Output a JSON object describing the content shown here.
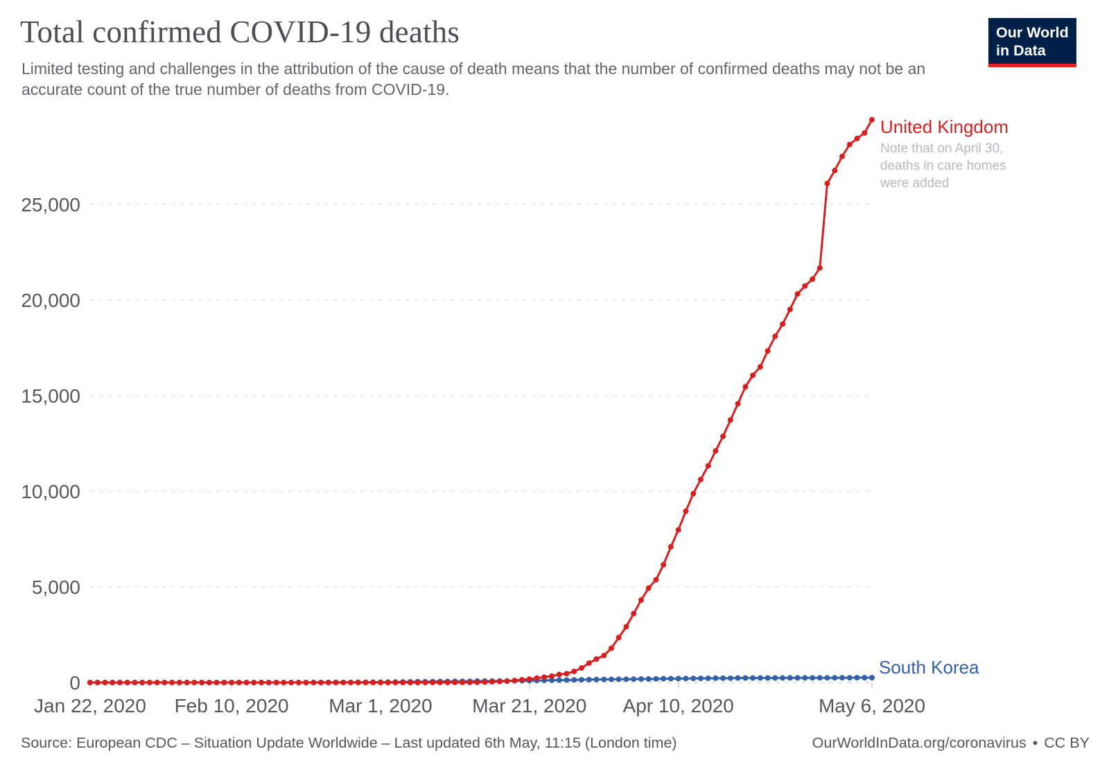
{
  "header": {
    "title": "Total confirmed COVID-19 deaths",
    "subtitle": "Limited testing and challenges in the attribution of the cause of death means that the number of confirmed deaths may not be an accurate count of the true number of deaths from COVID-19.",
    "logo": {
      "line1": "Our World",
      "line2": "in Data",
      "bg_color": "#002147",
      "accent_color": "#e2261c"
    }
  },
  "annotations": {
    "uk_label": "United Kingdom",
    "uk_note": "Note that on April 30, deaths in care homes were added",
    "sk_label": "South Korea"
  },
  "footer": {
    "source": "Source: European CDC – Situation Update Worldwide – Last updated 6th May, 11:15 (London time)",
    "link": "OurWorldInData.org/coronavirus",
    "bullet": "•",
    "license": "CC BY"
  },
  "chart_data": {
    "type": "line",
    "title": "Total confirmed COVID-19 deaths",
    "xlabel": "",
    "ylabel": "",
    "x_unit": "date",
    "x_start": "Jan 22, 2020",
    "x_end": "May 6, 2020",
    "n_points": 106,
    "ylim": [
      0,
      30500
    ],
    "grid": "dashed-horizontal",
    "legend_position": "right-of-line-labels",
    "y_ticks": [
      {
        "value": 0,
        "label": "0"
      },
      {
        "value": 5000,
        "label": "5,000"
      },
      {
        "value": 10000,
        "label": "10,000"
      },
      {
        "value": 15000,
        "label": "15,000"
      },
      {
        "value": 20000,
        "label": "20,000"
      },
      {
        "value": 25000,
        "label": "25,000"
      }
    ],
    "x_ticks": [
      {
        "day": 0,
        "label": "Jan 22, 2020"
      },
      {
        "day": 19,
        "label": "Feb 10, 2020"
      },
      {
        "day": 39,
        "label": "Mar 1, 2020"
      },
      {
        "day": 59,
        "label": "Mar 21, 2020"
      },
      {
        "day": 79,
        "label": "Apr 10, 2020"
      },
      {
        "day": 105,
        "label": "May 6, 2020"
      }
    ],
    "series": [
      {
        "name": "United Kingdom",
        "color": "#d62020",
        "values": [
          0,
          0,
          0,
          0,
          0,
          0,
          0,
          0,
          0,
          0,
          0,
          0,
          0,
          0,
          0,
          0,
          0,
          0,
          0,
          0,
          0,
          0,
          0,
          0,
          0,
          0,
          0,
          0,
          0,
          0,
          0,
          0,
          0,
          0,
          0,
          0,
          0,
          0,
          0,
          0,
          0,
          0,
          0,
          0,
          1,
          2,
          2,
          3,
          4,
          6,
          8,
          8,
          11,
          21,
          35,
          55,
          71,
          104,
          144,
          177,
          233,
          281,
          335,
          422,
          465,
          578,
          759,
          1019,
          1228,
          1408,
          1789,
          2352,
          2921,
          3605,
          4313,
          4934,
          5373,
          6159,
          7097,
          7978,
          8958,
          9875,
          10612,
          11329,
          12107,
          12868,
          13729,
          14576,
          15464,
          16060,
          16509,
          17337,
          18100,
          18738,
          19506,
          20319,
          20732,
          21092,
          21678,
          26097,
          26771,
          27510,
          28131,
          28446,
          28734,
          29427
        ]
      },
      {
        "name": "South Korea",
        "color": "#3360a9",
        "values": [
          0,
          0,
          0,
          0,
          0,
          0,
          0,
          0,
          0,
          0,
          0,
          0,
          0,
          0,
          0,
          0,
          0,
          0,
          0,
          0,
          0,
          0,
          0,
          0,
          0,
          0,
          0,
          0,
          0,
          1,
          2,
          2,
          6,
          8,
          10,
          12,
          13,
          13,
          17,
          18,
          22,
          28,
          32,
          35,
          42,
          44,
          50,
          53,
          54,
          60,
          66,
          67,
          72,
          75,
          75,
          81,
          84,
          91,
          94,
          102,
          104,
          111,
          120,
          126,
          131,
          139,
          144,
          152,
          158,
          162,
          165,
          169,
          174,
          177,
          183,
          186,
          192,
          200,
          204,
          208,
          211,
          214,
          217,
          222,
          225,
          229,
          230,
          234,
          236,
          236,
          238,
          238,
          240,
          240,
          242,
          243,
          244,
          244,
          246,
          247,
          248,
          250,
          250,
          252,
          254,
          255
        ]
      }
    ]
  }
}
